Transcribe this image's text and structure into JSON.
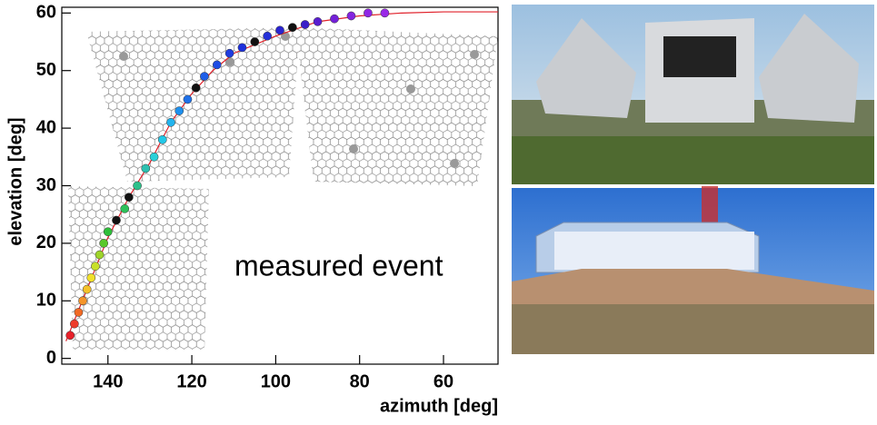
{
  "chart_data": {
    "type": "scatter",
    "xlabel": "azimuth  [deg]",
    "ylabel": "elevation  [deg]",
    "annotation": "measured event",
    "xlim": [
      151,
      47
    ],
    "ylim": [
      -1,
      61
    ],
    "xticks": [
      140,
      120,
      100,
      80,
      60
    ],
    "yticks": [
      0,
      10,
      20,
      30,
      40,
      50,
      60
    ],
    "points": {
      "x": [
        149,
        148,
        147,
        146,
        145,
        144,
        143,
        142,
        141,
        140,
        138,
        136,
        135,
        133,
        131,
        129,
        127,
        125,
        123,
        121,
        119,
        117,
        114,
        111,
        108,
        105,
        102,
        99,
        96,
        93,
        90,
        86,
        82,
        78,
        74
      ],
      "y": [
        4,
        6,
        8,
        10,
        12,
        14,
        16,
        18,
        20,
        22,
        24,
        26,
        28,
        30,
        33,
        35,
        38,
        41,
        43,
        45,
        47,
        49,
        51,
        53,
        54,
        55,
        56,
        57,
        57.5,
        58,
        58.5,
        59,
        59.5,
        60,
        60
      ],
      "colors": [
        "#e8202a",
        "#ee3b2a",
        "#f26a24",
        "#f5952a",
        "#f5c22a",
        "#f0df2a",
        "#c8e02a",
        "#9ed42a",
        "#5ac82a",
        "#2ebf3a",
        "#111111",
        "#2ec05a",
        "#111111",
        "#2ec08a",
        "#2ec0b0",
        "#2ad0d8",
        "#22c8e8",
        "#22b4ee",
        "#1e90ee",
        "#1e70e8",
        "#111111",
        "#1e5ee8",
        "#1e4ce4",
        "#1e3ce0",
        "#1e30dc",
        "#111111",
        "#2430d8",
        "#2a24d0",
        "#111111",
        "#3a20c8",
        "#5a1ed0",
        "#7420d8",
        "#8424e0",
        "#9026e4",
        "#9a28e8"
      ]
    },
    "fit": {
      "color": "#e0202a",
      "x": [
        150,
        145,
        140,
        135,
        130,
        125,
        120,
        115,
        110,
        100,
        90,
        80,
        70,
        60,
        47
      ],
      "y": [
        3,
        12,
        21,
        28,
        34,
        41,
        46,
        50,
        53,
        56,
        58.5,
        59.5,
        60,
        60.2,
        60.2
      ]
    }
  }
}
